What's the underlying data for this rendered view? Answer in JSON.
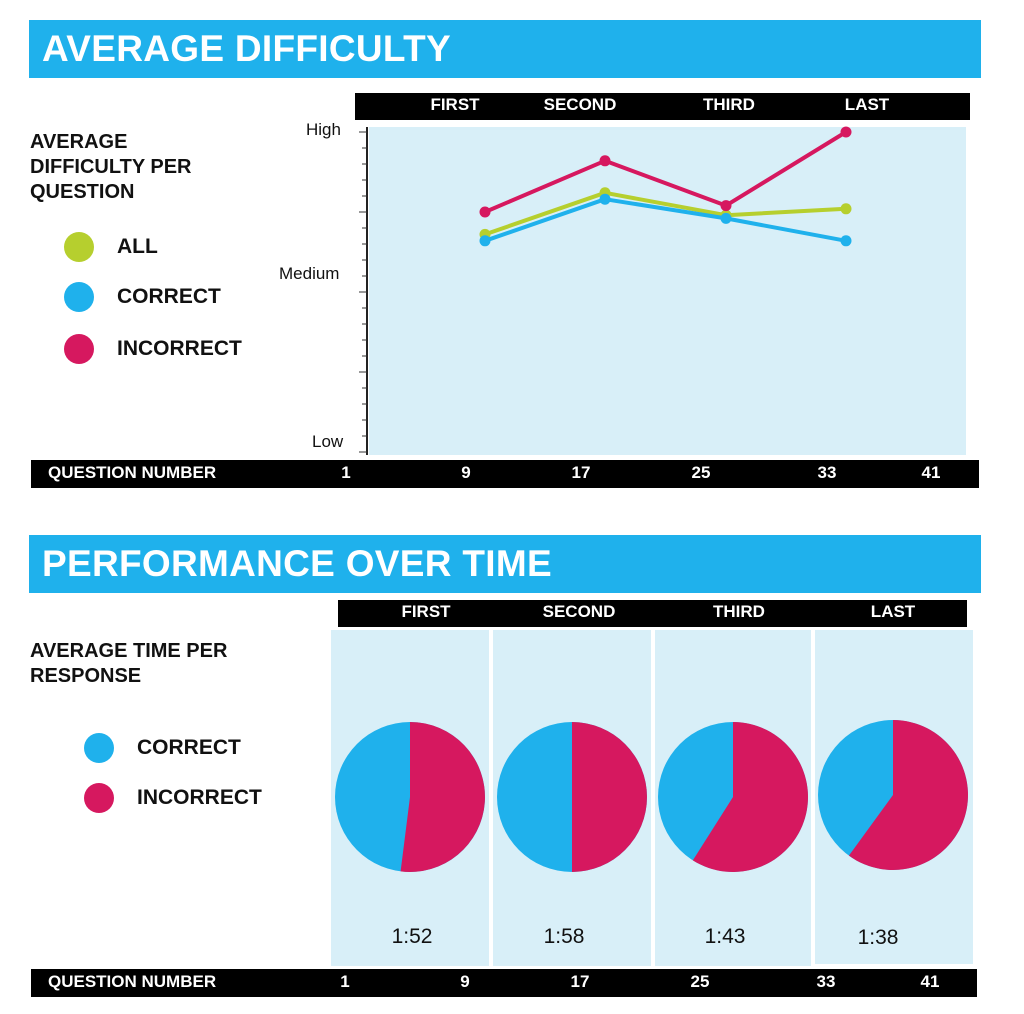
{
  "section1": {
    "banner": "AVERAGE DIFFICULTY",
    "side_title": "AVERAGE DIFFICULTY PER QUESTION"
  },
  "section2": {
    "banner": "PERFORMANCE OVER TIME",
    "side_title": "AVERAGE TIME PER RESPONSE"
  },
  "quarters": [
    "FIRST",
    "SECOND",
    "THIRD",
    "LAST"
  ],
  "axis_footer": {
    "label": "QUESTION NUMBER",
    "ticks": [
      "1",
      "9",
      "17",
      "25",
      "33",
      "41"
    ]
  },
  "legend1": [
    {
      "label": "ALL",
      "color": "#b6cf2e"
    },
    {
      "label": "CORRECT",
      "color": "#1fb1ec"
    },
    {
      "label": "INCORRECT",
      "color": "#d6185f"
    }
  ],
  "legend2": [
    {
      "label": "CORRECT",
      "color": "#1fb1ec"
    },
    {
      "label": "INCORRECT",
      "color": "#d6185f"
    }
  ],
  "chart_data": [
    {
      "type": "line",
      "title": "AVERAGE DIFFICULTY",
      "ylabel": "AVERAGE DIFFICULTY PER QUESTION",
      "xlabel": "QUESTION NUMBER",
      "categories": [
        "FIRST",
        "SECOND",
        "THIRD",
        "LAST"
      ],
      "y_tick_labels": [
        "High",
        "Medium",
        "Low"
      ],
      "ylim": [
        0,
        100
      ],
      "series": [
        {
          "name": "ALL",
          "color": "#b6cf2e",
          "values": [
            68,
            81,
            74,
            76
          ]
        },
        {
          "name": "CORRECT",
          "color": "#1fb1ec",
          "values": [
            66,
            79,
            73,
            66
          ]
        },
        {
          "name": "INCORRECT",
          "color": "#d6185f",
          "values": [
            75,
            91,
            77,
            100
          ]
        }
      ]
    },
    {
      "type": "pie",
      "title": "PERFORMANCE OVER TIME",
      "subtitle": "AVERAGE TIME PER RESPONSE",
      "xlabel": "QUESTION NUMBER",
      "categories": [
        "FIRST",
        "SECOND",
        "THIRD",
        "LAST"
      ],
      "slice_labels": [
        "CORRECT",
        "INCORRECT"
      ],
      "colors": [
        "#1fb1ec",
        "#d6185f"
      ],
      "incorrect_share": [
        0.52,
        0.5,
        0.59,
        0.6
      ],
      "times": [
        "1:52",
        "1:58",
        "1:43",
        "1:38"
      ]
    }
  ]
}
